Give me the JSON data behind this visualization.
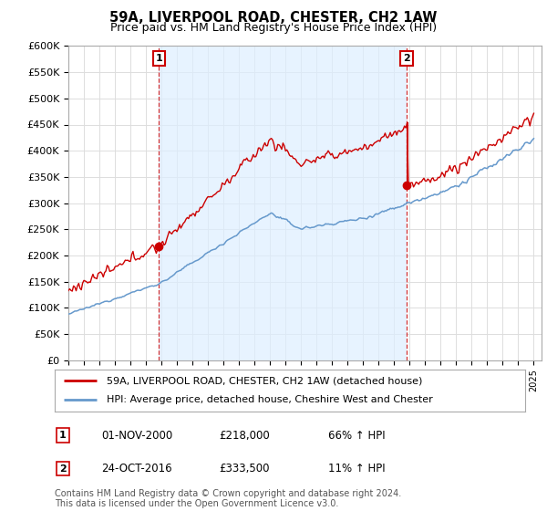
{
  "title": "59A, LIVERPOOL ROAD, CHESTER, CH2 1AW",
  "subtitle": "Price paid vs. HM Land Registry's House Price Index (HPI)",
  "ylabel_ticks": [
    "£0",
    "£50K",
    "£100K",
    "£150K",
    "£200K",
    "£250K",
    "£300K",
    "£350K",
    "£400K",
    "£450K",
    "£500K",
    "£550K",
    "£600K"
  ],
  "ylim": [
    0,
    600000
  ],
  "ytick_values": [
    0,
    50000,
    100000,
    150000,
    200000,
    250000,
    300000,
    350000,
    400000,
    450000,
    500000,
    550000,
    600000
  ],
  "sale1_date_num": 2000.83,
  "sale1_price": 218000,
  "sale1_label": "1",
  "sale2_date_num": 2016.81,
  "sale2_price": 333500,
  "sale2_label": "2",
  "legend_line1": "59A, LIVERPOOL ROAD, CHESTER, CH2 1AW (detached house)",
  "legend_line2": "HPI: Average price, detached house, Cheshire West and Chester",
  "table_row1": [
    "1",
    "01-NOV-2000",
    "£218,000",
    "66% ↑ HPI"
  ],
  "table_row2": [
    "2",
    "24-OCT-2016",
    "£333,500",
    "11% ↑ HPI"
  ],
  "footnote": "Contains HM Land Registry data © Crown copyright and database right 2024.\nThis data is licensed under the Open Government Licence v3.0.",
  "red_color": "#cc0000",
  "blue_color": "#6699cc",
  "shade_color": "#ddeeff",
  "background_color": "#ffffff",
  "grid_color": "#dddddd"
}
